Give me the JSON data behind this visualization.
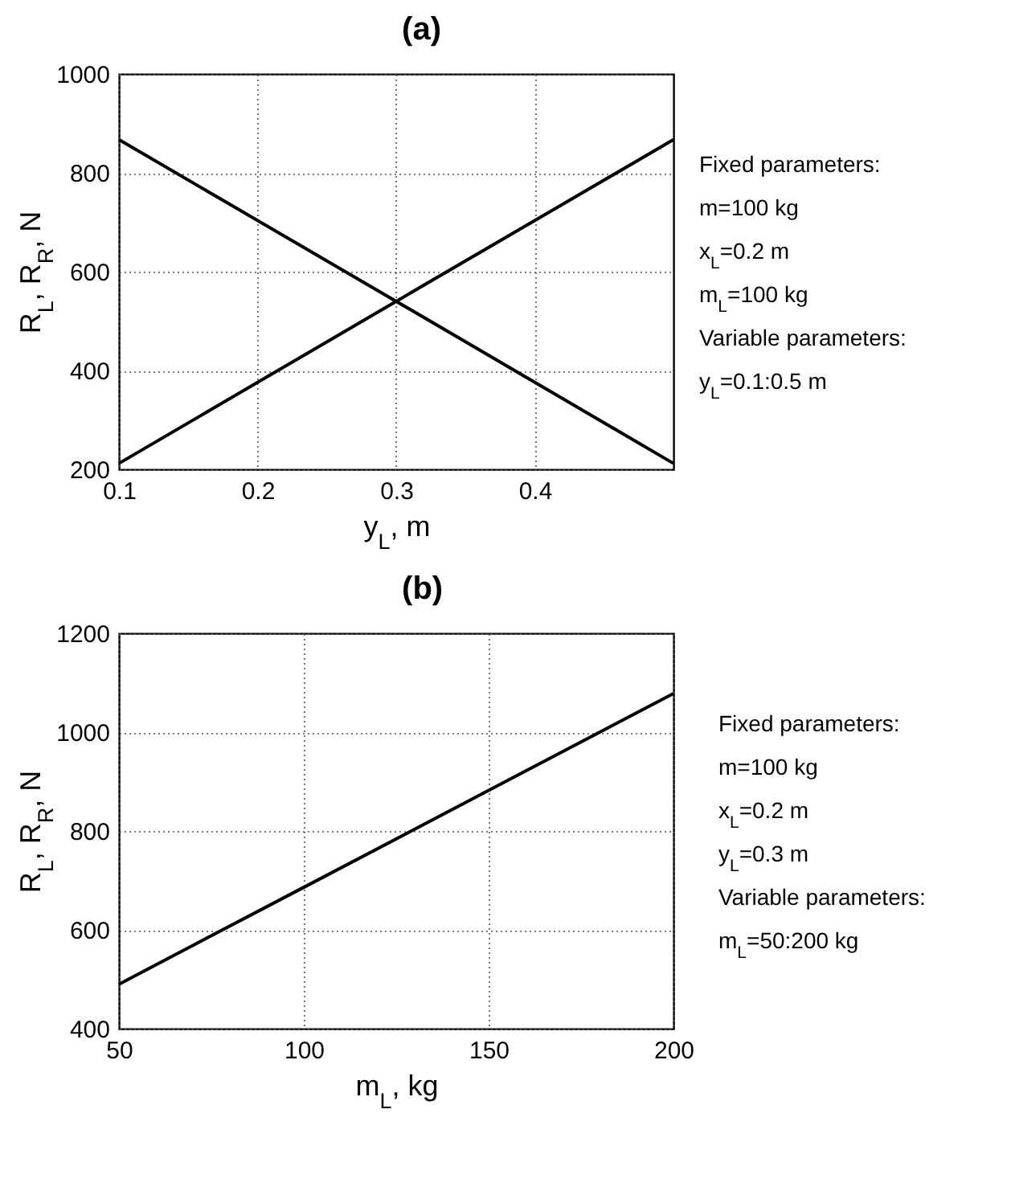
{
  "chart_data": [
    {
      "type": "line",
      "title": "(a)",
      "xlabel": "y$_{L}$, m",
      "ylabel": "R$_{L}$, R$_{R}$, N",
      "annotations": [
        "Fixed parameters:",
        "m=100 kg",
        "x$_{L}$=0.2 m",
        "m$_{L}$=100 kg",
        "Variable parameters:",
        "y$_{L}$=0.1:0.5 m"
      ],
      "x": [
        0.1,
        0.3,
        0.5
      ],
      "series": [
        {
          "color": "#000000",
          "values": [
            867,
            540,
            212
          ]
        },
        {
          "color": "#000000",
          "values": [
            212,
            540,
            867
          ]
        }
      ],
      "xlim": [
        0.1,
        0.5
      ],
      "ylim": [
        200,
        1000
      ],
      "xticks": [
        0.1,
        0.2,
        0.3,
        0.4
      ],
      "yticks": [
        200,
        400,
        600,
        800,
        1000
      ],
      "grid": true
    },
    {
      "type": "line",
      "title": "(b)",
      "xlabel": "m$_{L}$, kg",
      "ylabel": "R$_{L}$, R$_{R}$, N",
      "annotations": [
        "Fixed parameters:",
        "m=100 kg",
        "x$_{L}$=0.2 m",
        "y$_{L}$=0.3 m",
        "Variable parameters:",
        "m$_{L}$=50:200 kg"
      ],
      "x": [
        50,
        100,
        150,
        200
      ],
      "series": [
        {
          "color": "#000000",
          "values": [
            490,
            686,
            882,
            1078
          ]
        }
      ],
      "xlim": [
        50,
        200
      ],
      "ylim": [
        400,
        1200
      ],
      "xticks": [
        50,
        100,
        150,
        200
      ],
      "yticks": [
        400,
        600,
        800,
        1000,
        1200
      ],
      "grid": true
    }
  ]
}
